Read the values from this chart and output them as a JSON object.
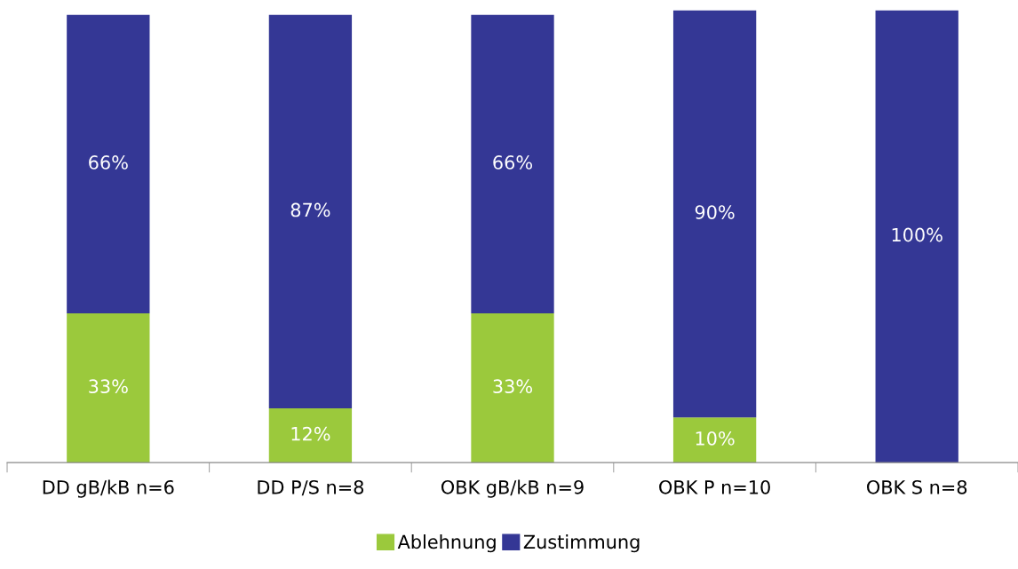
{
  "chart_data": {
    "type": "bar",
    "stacked": true,
    "legend": "bottom",
    "grid": false,
    "categories": [
      "DD gB/kB n=6",
      "DD P/S n=8",
      "OBK gB/kB n=9",
      "OBK P n=10",
      "OBK S n=8"
    ],
    "series": [
      {
        "name": "Ablehnung",
        "color": "#9bc93c",
        "values": [
          33,
          12,
          33,
          10,
          null
        ],
        "value_labels": [
          "33%",
          "12%",
          "33%",
          "10%",
          null
        ]
      },
      {
        "name": "Zustimmung",
        "color": "#343795",
        "values": [
          66,
          87,
          66,
          90,
          100
        ],
        "value_labels": [
          "66%",
          "87%",
          "66%",
          "90%",
          "100%"
        ]
      }
    ]
  }
}
